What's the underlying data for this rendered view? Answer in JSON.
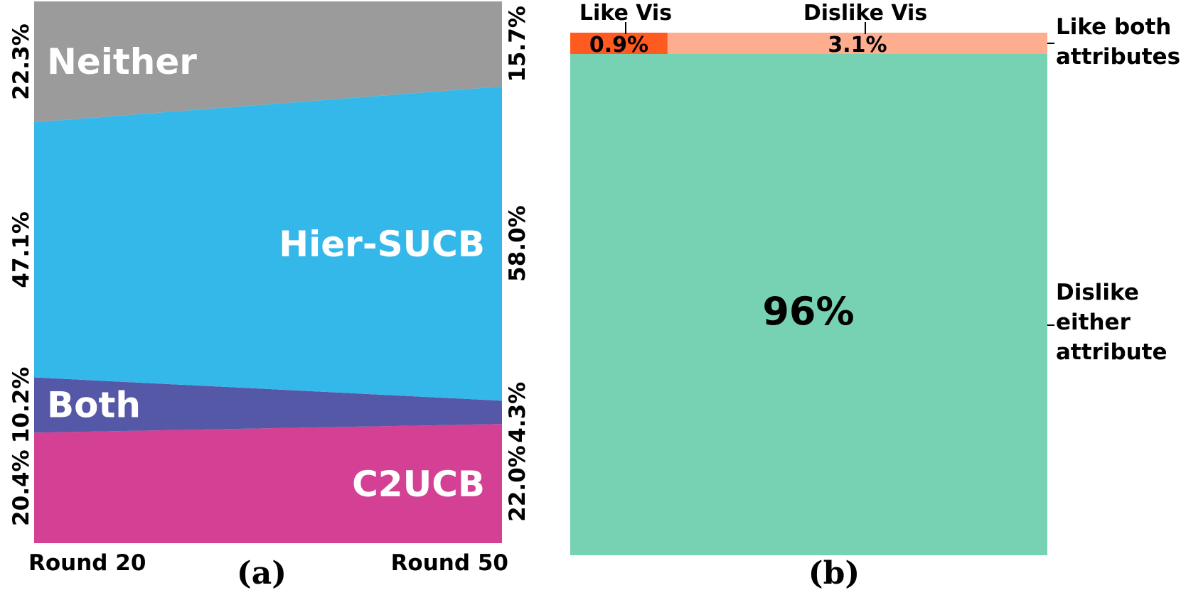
{
  "chart_data": [
    {
      "type": "area",
      "x_labels": [
        "Round 20",
        "Round 50"
      ],
      "caption": "(a)",
      "series": [
        {
          "name": "C2UCB",
          "values": [
            20.4,
            22.0
          ],
          "labels": [
            "20.4%",
            "22.0%"
          ],
          "color": "#d44093"
        },
        {
          "name": "Both",
          "values": [
            10.2,
            4.3
          ],
          "labels": [
            "10.2%",
            "4.3%"
          ],
          "color": "#5558a6"
        },
        {
          "name": "Hier-SUCB",
          "values": [
            47.1,
            58.0
          ],
          "labels": [
            "47.1%",
            "58.0%"
          ],
          "color": "#34b8ea"
        },
        {
          "name": "Neither",
          "values": [
            22.3,
            15.7
          ],
          "labels": [
            "22.3%",
            "15.7%"
          ],
          "color": "#9b9b9b"
        }
      ]
    },
    {
      "type": "bar",
      "caption": "(b)",
      "segments": [
        {
          "key": "like_vis",
          "top_label": "Like Vis",
          "value": 0.9,
          "label": "0.9%",
          "color": "#ff5a1f"
        },
        {
          "key": "dislike_vis",
          "top_label": "Dislike Vis",
          "value": 3.1,
          "label": "3.1%",
          "color": "#ffad8f"
        }
      ],
      "main": {
        "value": 96,
        "label": "96%",
        "color": "#76d2b3"
      },
      "side_labels": {
        "top": [
          "Like both",
          "attributes"
        ],
        "main": [
          "Dislike",
          "either",
          "attribute"
        ]
      }
    }
  ]
}
